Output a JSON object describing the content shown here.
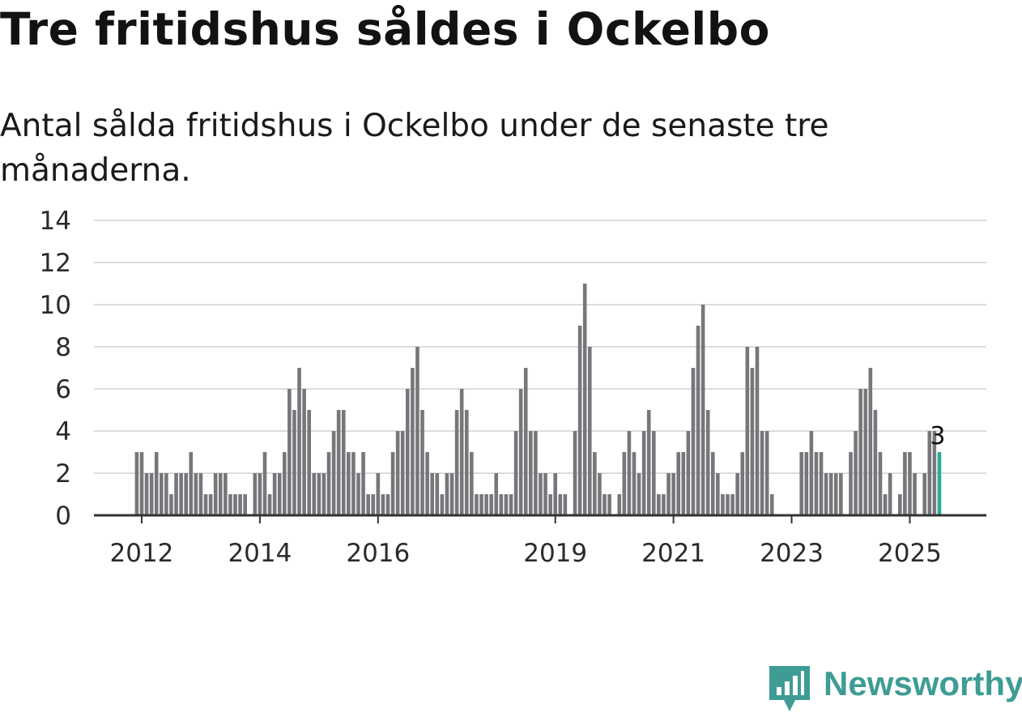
{
  "title": "Tre fritidshus såldes i Ockelbo",
  "subtitle": "Antal sålda fritidshus i Ockelbo under de senaste tre månaderna.",
  "brand": {
    "name": "Newsworthy",
    "icon": "newsworthy-chart-icon"
  },
  "colors": {
    "bar": "#77767b",
    "highlight": "#2aa89a",
    "grid": "#dcdcdc",
    "axis": "#333333",
    "brand": "#3e9c95"
  },
  "chart_data": {
    "type": "bar",
    "title": "Tre fritidshus såldes i Ockelbo",
    "xlabel": "",
    "ylabel": "",
    "ylim": [
      0,
      14
    ],
    "yticks": [
      0,
      2,
      4,
      6,
      8,
      10,
      12,
      14
    ],
    "start": {
      "year": 2011,
      "month": 12
    },
    "xtick_labels": [
      {
        "label": "2012",
        "year": 2012
      },
      {
        "label": "2014",
        "year": 2014
      },
      {
        "label": "2016",
        "year": 2016
      },
      {
        "label": "2019",
        "year": 2019
      },
      {
        "label": "2021",
        "year": 2021
      },
      {
        "label": "2023",
        "year": 2023
      },
      {
        "label": "2025",
        "year": 2025
      }
    ],
    "values": [
      3,
      3,
      2,
      2,
      3,
      2,
      2,
      1,
      2,
      2,
      2,
      3,
      2,
      2,
      1,
      1,
      2,
      2,
      2,
      1,
      1,
      1,
      1,
      0,
      2,
      2,
      3,
      1,
      2,
      2,
      3,
      6,
      5,
      7,
      6,
      5,
      2,
      2,
      2,
      3,
      4,
      5,
      5,
      3,
      3,
      2,
      3,
      1,
      1,
      2,
      1,
      1,
      3,
      4,
      4,
      6,
      7,
      8,
      5,
      3,
      2,
      2,
      1,
      2,
      2,
      5,
      6,
      5,
      3,
      1,
      1,
      1,
      1,
      2,
      1,
      1,
      1,
      4,
      6,
      7,
      4,
      4,
      2,
      2,
      1,
      2,
      1,
      1,
      0,
      4,
      9,
      11,
      8,
      3,
      2,
      1,
      1,
      0,
      1,
      3,
      4,
      3,
      2,
      4,
      5,
      4,
      1,
      1,
      2,
      2,
      3,
      3,
      4,
      7,
      9,
      10,
      5,
      3,
      2,
      1,
      1,
      1,
      2,
      3,
      8,
      7,
      8,
      4,
      4,
      1,
      0,
      0,
      0,
      0,
      0,
      3,
      3,
      4,
      3,
      3,
      2,
      2,
      2,
      2,
      0,
      3,
      4,
      6,
      6,
      7,
      5,
      3,
      1,
      2,
      0,
      1,
      3,
      3,
      2,
      0,
      2,
      4,
      4,
      3
    ],
    "highlight_index": 163,
    "highlight_label": "3"
  }
}
